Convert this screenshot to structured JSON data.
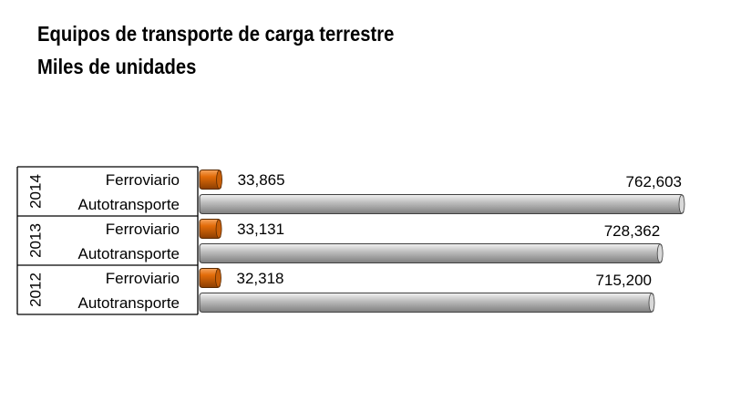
{
  "chart_data": {
    "type": "bar",
    "orientation": "horizontal",
    "title": "Equipos de transporte de carga terrestre",
    "subtitle": "Miles de unidades",
    "groups": [
      "2014",
      "2013",
      "2012"
    ],
    "categories": [
      "Ferroviario",
      "Autotransporte"
    ],
    "series": [
      {
        "values": [
          33865,
          762603
        ],
        "labels": [
          "33,865",
          "762,603"
        ]
      },
      {
        "values": [
          33131,
          728362
        ],
        "labels": [
          "33,131",
          "728,362"
        ]
      },
      {
        "values": [
          32318,
          715200
        ],
        "labels": [
          "32,318",
          "715,200"
        ]
      }
    ],
    "colors": {
      "ferroviario": "#E36C09",
      "autotransporte": "#BFBFBF"
    },
    "grid": false,
    "legend": "none"
  }
}
